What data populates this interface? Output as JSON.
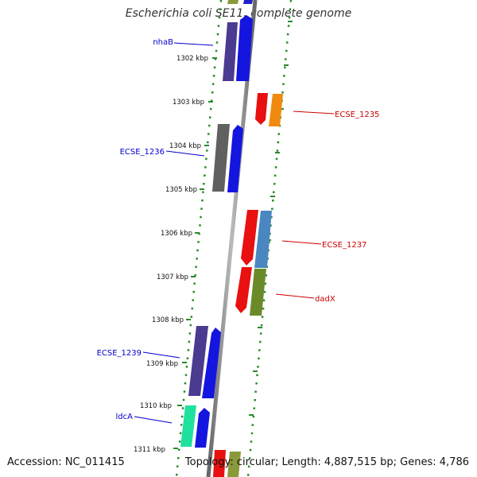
{
  "header": {
    "title": "Escherichia coli SE11, complete genome"
  },
  "footer": {
    "accession": "Accession: NC_011415",
    "summary": "Topology: circular; Length: 4,887,515 bp; Genes: 4,786"
  },
  "ticks": [
    "1302 kbp",
    "1303 kbp",
    "1304 kbp",
    "1305 kbp",
    "1306 kbp",
    "1307 kbp",
    "1308 kbp",
    "1309 kbp",
    "1310 kbp",
    "1311 kbp"
  ],
  "gene_labels": [
    "nhaB",
    "ECSE_1235",
    "ECSE_1236",
    "ECSE_1237",
    "dadX",
    "ECSE_1239",
    "ldcA"
  ],
  "colors": {
    "forward_label": "#0000cc",
    "reverse_label": "#cc0000",
    "backbone": "#888888",
    "dots": "#2a8a2a"
  }
}
